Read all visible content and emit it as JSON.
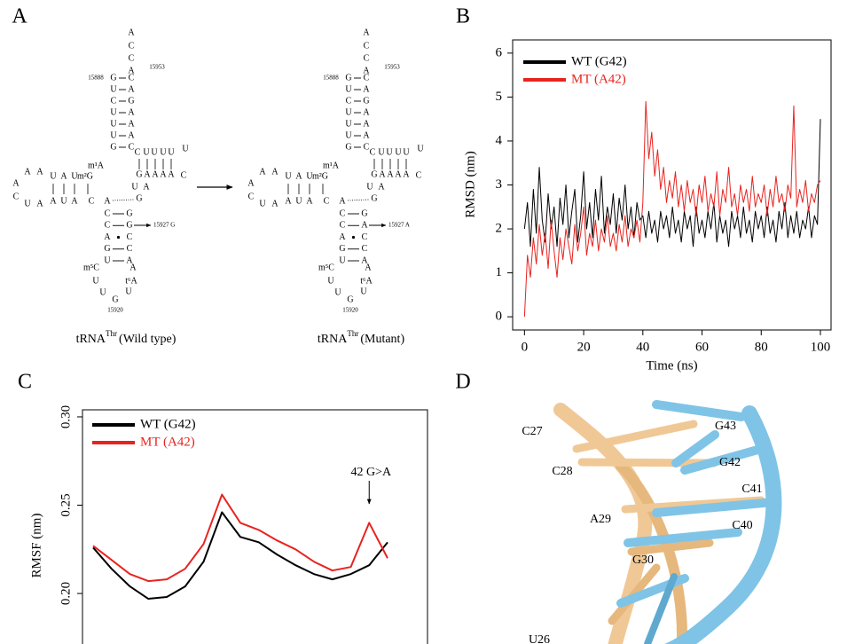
{
  "panel_labels": [
    "A",
    "B",
    "C",
    "D"
  ],
  "panel_a": {
    "structures": [
      {
        "title": {
          "base": "tRNA",
          "sup": "Thr",
          "rest": "(Wild type)"
        },
        "tail": [
          "A",
          "C",
          "C",
          "A"
        ],
        "five_prime": "15888",
        "three_prime": "15953",
        "acceptor_pairs": [
          [
            "G",
            "C"
          ],
          [
            "U",
            "A"
          ],
          [
            "C",
            "G"
          ],
          [
            "U",
            "A"
          ],
          [
            "U",
            "A"
          ],
          [
            "U",
            "A"
          ],
          [
            "G",
            "C"
          ]
        ],
        "d_arm_top": [
          "U",
          "A",
          "U",
          "m²G",
          "m¹A"
        ],
        "d_arm_bottom": [
          "A",
          "U",
          "A",
          "C",
          "A"
        ],
        "d_loop": [
          "A",
          "A",
          "A",
          "C",
          "U",
          "A"
        ],
        "t_arm_top": [
          "C",
          "U",
          "U",
          "U",
          "U"
        ],
        "t_loop": [
          "U",
          "C"
        ],
        "t_arm_bottom": [
          "G",
          "A",
          "A",
          "A",
          "A"
        ],
        "variable": [
          "U",
          "A",
          "G"
        ],
        "anticodon_pairs": [
          [
            "C",
            "G"
          ],
          [
            "C",
            "G"
          ],
          [
            "A",
            "C"
          ],
          [
            "G",
            "C"
          ],
          [
            "U",
            "A"
          ]
        ],
        "anticodon_loop": [
          "m⁵C",
          "A",
          "U",
          "t⁶A",
          "U",
          "G",
          "U"
        ],
        "loop_label": "15920",
        "mutation_label": "15927 G"
      },
      {
        "title": {
          "base": "tRNA",
          "sup": "Thr",
          "rest": "(Mutant)"
        },
        "tail": [
          "A",
          "C",
          "C",
          "A"
        ],
        "five_prime": "15888",
        "three_prime": "15953",
        "acceptor_pairs": [
          [
            "G",
            "C"
          ],
          [
            "U",
            "A"
          ],
          [
            "C",
            "G"
          ],
          [
            "U",
            "A"
          ],
          [
            "U",
            "A"
          ],
          [
            "U",
            "A"
          ],
          [
            "G",
            "C"
          ]
        ],
        "d_arm_top": [
          "U",
          "A",
          "U",
          "m²G",
          "m¹A"
        ],
        "d_arm_bottom": [
          "A",
          "U",
          "A",
          "C",
          "A"
        ],
        "d_loop": [
          "A",
          "A",
          "A",
          "C",
          "U",
          "A"
        ],
        "t_arm_top": [
          "C",
          "U",
          "U",
          "U",
          "U"
        ],
        "t_loop": [
          "U",
          "C"
        ],
        "t_arm_bottom": [
          "G",
          "A",
          "A",
          "A",
          "A"
        ],
        "variable": [
          "U",
          "A",
          "G"
        ],
        "anticodon_pairs": [
          [
            "C",
            "G"
          ],
          [
            "C",
            "A"
          ],
          [
            "A",
            "C"
          ],
          [
            "G",
            "C"
          ],
          [
            "U",
            "A"
          ]
        ],
        "anticodon_loop": [
          "m⁵C",
          "A",
          "U",
          "t⁶A",
          "U",
          "G",
          "U"
        ],
        "loop_label": "15920",
        "mutation_label": "15927 A"
      }
    ]
  },
  "chart_data": [
    {
      "type": "line",
      "ylabel": "RMSD (nm)",
      "xlabel": "Time (ns)",
      "x": [
        0,
        1,
        2,
        3,
        4,
        5,
        6,
        7,
        8,
        9,
        10,
        11,
        12,
        13,
        14,
        15,
        16,
        17,
        18,
        19,
        20,
        21,
        22,
        23,
        24,
        25,
        26,
        27,
        28,
        29,
        30,
        31,
        32,
        33,
        34,
        35,
        36,
        37,
        38,
        39,
        40,
        41,
        42,
        43,
        44,
        45,
        46,
        47,
        48,
        49,
        50,
        51,
        52,
        53,
        54,
        55,
        56,
        57,
        58,
        59,
        60,
        61,
        62,
        63,
        64,
        65,
        66,
        67,
        68,
        69,
        70,
        71,
        72,
        73,
        74,
        75,
        76,
        77,
        78,
        79,
        80,
        81,
        82,
        83,
        84,
        85,
        86,
        87,
        88,
        89,
        90,
        91,
        92,
        93,
        94,
        95,
        96,
        97,
        98,
        99,
        100
      ],
      "series": [
        {
          "name": "WT (G42)",
          "color": "#000000",
          "values": [
            2.0,
            2.6,
            1.6,
            2.9,
            1.9,
            3.4,
            2.2,
            1.7,
            2.8,
            2.0,
            2.5,
            1.6,
            2.7,
            2.1,
            3.0,
            1.8,
            2.4,
            2.9,
            1.7,
            2.3,
            3.3,
            2.0,
            2.6,
            1.8,
            2.9,
            2.2,
            3.2,
            1.9,
            2.5,
            2.1,
            2.8,
            1.9,
            2.7,
            2.2,
            3.0,
            2.0,
            2.5,
            1.8,
            2.6,
            2.2,
            2.3,
            1.8,
            2.4,
            1.9,
            2.2,
            1.7,
            2.4,
            2.0,
            2.3,
            1.8,
            2.5,
            1.9,
            2.2,
            1.7,
            2.4,
            2.0,
            2.3,
            1.6,
            2.5,
            1.9,
            2.2,
            1.8,
            2.4,
            2.0,
            2.6,
            1.7,
            2.3,
            1.9,
            2.2,
            1.6,
            2.4,
            2.0,
            2.3,
            1.8,
            2.5,
            1.9,
            2.2,
            1.7,
            2.4,
            2.0,
            2.3,
            1.8,
            2.5,
            1.9,
            2.2,
            1.7,
            2.4,
            2.0,
            2.6,
            1.8,
            2.3,
            1.9,
            2.4,
            1.8,
            2.2,
            2.0,
            2.5,
            1.8,
            2.3,
            2.1,
            4.5
          ]
        },
        {
          "name": "MT (A42)",
          "color": "#e8231f",
          "values": [
            0,
            1.4,
            0.9,
            1.8,
            1.2,
            2.1,
            1.4,
            1.9,
            1.1,
            2.2,
            1.5,
            0.9,
            1.8,
            1.3,
            2.0,
            1.6,
            1.2,
            2.1,
            1.5,
            1.9,
            2.5,
            1.4,
            1.9,
            1.6,
            2.2,
            1.5,
            2.0,
            1.7,
            2.3,
            1.6,
            1.9,
            1.5,
            2.1,
            1.7,
            2.3,
            1.6,
            2.0,
            1.8,
            2.2,
            1.7,
            2.6,
            4.9,
            3.6,
            4.2,
            3.2,
            3.8,
            2.9,
            3.4,
            2.6,
            3.1,
            2.7,
            3.3,
            2.5,
            3.0,
            2.4,
            3.1,
            2.6,
            2.9,
            2.3,
            3.0,
            2.6,
            3.2,
            2.4,
            2.8,
            2.5,
            3.3,
            2.3,
            2.9,
            2.6,
            3.4,
            2.5,
            2.8,
            2.3,
            3.0,
            2.6,
            2.9,
            2.4,
            3.2,
            2.5,
            2.8,
            2.6,
            3.0,
            2.3,
            2.9,
            2.5,
            3.2,
            2.6,
            2.8,
            2.4,
            3.0,
            2.7,
            4.8,
            2.5,
            2.9,
            2.6,
            3.1,
            2.4,
            2.8,
            2.6,
            3.0,
            3.1
          ]
        }
      ],
      "xlim": [
        -4,
        103.6
      ],
      "ylim": [
        -0.3,
        6.3
      ],
      "xticks": [
        0,
        20,
        40,
        60,
        80,
        100
      ],
      "yticks": [
        0,
        1,
        2,
        3,
        4,
        5,
        6
      ],
      "legend": "upper left"
    },
    {
      "type": "line",
      "ylabel": "RMSF (nm)",
      "series": [
        {
          "name": "WT (G42)",
          "color": "#000000",
          "values": [
            0.226,
            0.214,
            0.204,
            0.197,
            0.198,
            0.204,
            0.218,
            0.246,
            0.232,
            0.229,
            0.222,
            0.216,
            0.211,
            0.208,
            0.211,
            0.216,
            0.229
          ]
        },
        {
          "name": "MT (A42)",
          "color": "#e8231f",
          "values": [
            0.227,
            0.219,
            0.211,
            0.207,
            0.208,
            0.214,
            0.228,
            0.256,
            0.24,
            0.236,
            0.23,
            0.225,
            0.218,
            0.213,
            0.215,
            0.24,
            0.22
          ]
        }
      ],
      "ylim": [
        0.1714,
        0.304
      ],
      "yticks": [
        {
          "value": 0.3,
          "label": "0.30"
        },
        0.25,
        {
          "value": 0.2,
          "label": "0.20"
        }
      ],
      "legend": "upper left",
      "annotations": [
        {
          "text": "42 G>A"
        }
      ]
    }
  ],
  "panel_d": {
    "labels": [
      "C27",
      "C28",
      "A29",
      "G30",
      "U26",
      "G43",
      "G42",
      "C41",
      "C40"
    ]
  }
}
